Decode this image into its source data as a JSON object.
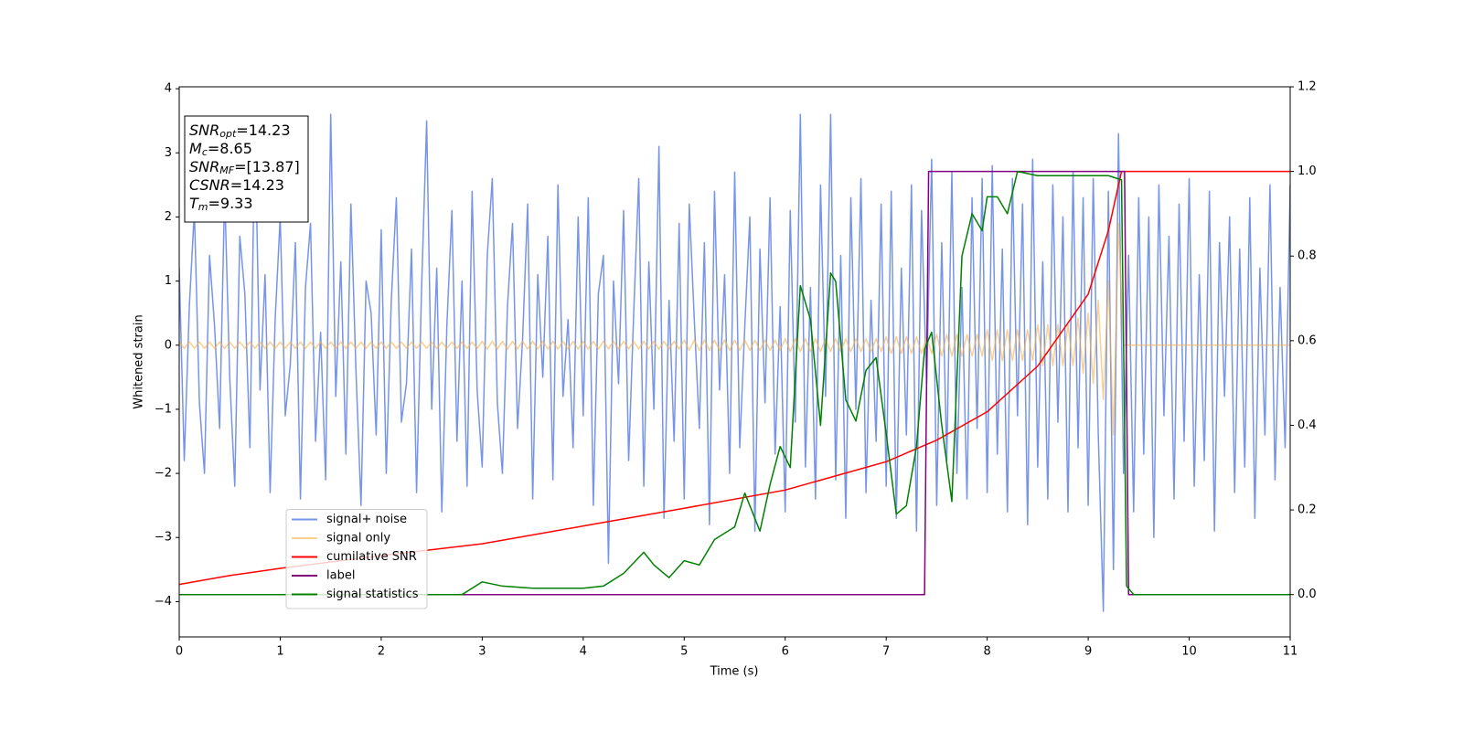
{
  "chart_data": {
    "type": "line",
    "xlabel": "Time (s)",
    "ylabel": "Whitened strain",
    "xlim": [
      0,
      11
    ],
    "ylim": [
      -4.55,
      4.03
    ],
    "y2lim": [
      -0.1,
      1.2
    ],
    "xticks": [
      0,
      1,
      2,
      3,
      4,
      5,
      6,
      7,
      8,
      9,
      10,
      11
    ],
    "yticks": [
      {
        "value": -4,
        "label": "−4"
      },
      {
        "value": -3,
        "label": "−3"
      },
      {
        "value": -2,
        "label": "−2"
      },
      {
        "value": -1,
        "label": "−1"
      },
      0,
      1,
      2,
      3,
      4
    ],
    "y2ticks": [
      {
        "value": 0,
        "label": "0.0"
      },
      0.2,
      0.4,
      0.6,
      0.8,
      {
        "value": 1,
        "label": "1.0"
      },
      1.2
    ],
    "legend": "lower left",
    "annotations": [
      {
        "base": "SNR",
        "sub": "opt",
        "text": "=14.23"
      },
      {
        "base": "M",
        "sub": "c",
        "text": "=8.65"
      },
      {
        "base": "SNR",
        "sub": "MF",
        "text": "=[13.87]"
      },
      {
        "base": "CSNR",
        "text": "=14.23"
      },
      {
        "base": "T",
        "sub": "m",
        "text": "=9.33"
      }
    ],
    "x": [
      0,
      0.05,
      0.1,
      0.15,
      0.2,
      0.25,
      0.3,
      0.35,
      0.4,
      0.45,
      0.5,
      0.55,
      0.6,
      0.65,
      0.7,
      0.75,
      0.8,
      0.85,
      0.9,
      0.95,
      1,
      1.05,
      1.1,
      1.15,
      1.2,
      1.25,
      1.3,
      1.35,
      1.4,
      1.45,
      1.5,
      1.55,
      1.6,
      1.65,
      1.7,
      1.75,
      1.8,
      1.85,
      1.9,
      1.95,
      2,
      2.05,
      2.1,
      2.15,
      2.2,
      2.25,
      2.3,
      2.35,
      2.4,
      2.45,
      2.5,
      2.55,
      2.6,
      2.65,
      2.7,
      2.75,
      2.8,
      2.85,
      2.9,
      2.95,
      3,
      3.05,
      3.1,
      3.15,
      3.2,
      3.25,
      3.3,
      3.35,
      3.4,
      3.45,
      3.5,
      3.55,
      3.6,
      3.65,
      3.7,
      3.75,
      3.8,
      3.85,
      3.9,
      3.95,
      4,
      4.05,
      4.1,
      4.15,
      4.2,
      4.25,
      4.3,
      4.35,
      4.4,
      4.45,
      4.5,
      4.55,
      4.6,
      4.65,
      4.7,
      4.75,
      4.8,
      4.85,
      4.9,
      4.95,
      5,
      5.05,
      5.1,
      5.15,
      5.2,
      5.25,
      5.3,
      5.35,
      5.4,
      5.45,
      5.5,
      5.55,
      5.6,
      5.65,
      5.7,
      5.75,
      5.8,
      5.85,
      5.9,
      5.95,
      6,
      6.05,
      6.1,
      6.15,
      6.2,
      6.25,
      6.3,
      6.35,
      6.4,
      6.45,
      6.5,
      6.55,
      6.6,
      6.65,
      6.7,
      6.75,
      6.8,
      6.85,
      6.9,
      6.95,
      7,
      7.05,
      7.1,
      7.15,
      7.2,
      7.25,
      7.3,
      7.35,
      7.4,
      7.45,
      7.5,
      7.55,
      7.6,
      7.65,
      7.7,
      7.75,
      7.8,
      7.85,
      7.9,
      7.95,
      8,
      8.05,
      8.1,
      8.15,
      8.2,
      8.25,
      8.3,
      8.35,
      8.4,
      8.45,
      8.5,
      8.55,
      8.6,
      8.65,
      8.7,
      8.75,
      8.8,
      8.85,
      8.9,
      8.95,
      9,
      9.05,
      9.1,
      9.15,
      9.2,
      9.25,
      9.3,
      9.35,
      9.4,
      9.45,
      9.5,
      9.55,
      9.6,
      9.65,
      9.7,
      9.75,
      9.8,
      9.85,
      9.9,
      9.95,
      10,
      10.05,
      10.1,
      10.15,
      10.2,
      10.25,
      10.3,
      10.35,
      10.4,
      10.45,
      10.5,
      10.55,
      10.6,
      10.65,
      10.7,
      10.75,
      10.8,
      10.85,
      10.9,
      10.95,
      11
    ],
    "series": [
      {
        "name": "signal+ noise",
        "color": "#7795e8",
        "axis": "y",
        "values": [
          1.2,
          -1.8,
          0.6,
          2.1,
          -0.9,
          -2.0,
          1.4,
          0.3,
          -1.3,
          2.4,
          -0.5,
          -2.2,
          1.7,
          0.8,
          -1.6,
          3.5,
          -0.7,
          1.1,
          -2.3,
          0.4,
          2.0,
          -1.1,
          -0.3,
          1.6,
          -2.4,
          0.9,
          1.9,
          -1.5,
          0.2,
          -2.1,
          3.6,
          -0.8,
          1.3,
          -1.7,
          2.2,
          -0.4,
          -2.5,
          1.0,
          0.5,
          -1.4,
          1.8,
          -2.0,
          0.7,
          2.3,
          -1.2,
          -0.6,
          1.5,
          -2.3,
          0.9,
          3.5,
          -1.0,
          1.2,
          -2.6,
          0.3,
          2.1,
          -1.5,
          1.0,
          -2.2,
          2.4,
          -0.7,
          -1.9,
          1.4,
          2.6,
          -0.9,
          -2.0,
          0.6,
          1.9,
          -1.3,
          0.1,
          2.2,
          -2.4,
          1.1,
          -0.5,
          1.7,
          -2.1,
          2.5,
          -0.8,
          0.4,
          -1.6,
          2.0,
          -1.1,
          2.3,
          -2.5,
          0.8,
          1.4,
          -3.4,
          1.0,
          -0.6,
          2.1,
          -1.8,
          0.5,
          2.6,
          -2.2,
          1.3,
          -1.0,
          3.1,
          -2.7,
          0.7,
          -1.5,
          1.9,
          -2.4,
          2.2,
          0.4,
          -1.3,
          1.6,
          -2.8,
          2.4,
          -0.7,
          1.1,
          -2.0,
          2.7,
          -1.6,
          0.3,
          2.0,
          -2.9,
          1.5,
          -0.9,
          2.3,
          -1.7,
          0.6,
          -2.6,
          2.1,
          -1.2,
          3.6,
          -1.9,
          0.9,
          -2.4,
          2.5,
          -0.8,
          3.6,
          -2.1,
          1.4,
          -2.7,
          2.3,
          -1.0,
          2.6,
          -2.3,
          0.7,
          -1.5,
          2.2,
          -2.2,
          2.4,
          -2.7,
          1.2,
          -1.4,
          2.5,
          -2.9,
          2.1,
          -0.6,
          2.9,
          -2.5,
          1.6,
          -1.8,
          2.7,
          -2.0,
          0.9,
          -2.4,
          2.3,
          -1.3,
          2.6,
          -2.3,
          2.8,
          -1.7,
          1.5,
          -2.6,
          2.6,
          -1.1,
          2.2,
          -2.8,
          2.9,
          -1.9,
          1.3,
          -2.4,
          2.5,
          -1.2,
          2.0,
          -2.6,
          2.7,
          -1.6,
          2.3,
          -2.5,
          2.6,
          -1.4,
          -4.15,
          2.4,
          -3.5,
          3.3,
          -2.0,
          1.4,
          -2.6,
          2.3,
          -1.7,
          2.0,
          -3.0,
          2.5,
          -1.1,
          1.7,
          -2.4,
          2.2,
          -1.5,
          2.6,
          -2.2,
          1.1,
          -1.8,
          2.4,
          -2.9,
          1.6,
          -0.8,
          2.0,
          -2.3,
          1.5,
          -1.9,
          2.3,
          -2.7,
          1.2,
          -1.4,
          2.5,
          -2.1,
          0.9,
          -1.6,
          2.5
        ]
      },
      {
        "name": "signal only",
        "color": "#f5b04a",
        "axis": "y",
        "values": [
          0.05,
          -0.05,
          0.05,
          -0.05,
          0.05,
          -0.05,
          0.05,
          -0.05,
          0.05,
          -0.05,
          0.05,
          -0.05,
          0.05,
          -0.05,
          0.05,
          -0.05,
          0.05,
          -0.05,
          0.05,
          -0.05,
          0.05,
          -0.05,
          0.05,
          -0.05,
          0.05,
          -0.05,
          0.05,
          -0.05,
          0.05,
          -0.05,
          0.05,
          -0.05,
          0.05,
          -0.05,
          0.05,
          -0.05,
          0.05,
          -0.05,
          0.05,
          -0.05,
          0.05,
          -0.05,
          0.05,
          -0.05,
          0.05,
          -0.05,
          0.05,
          -0.05,
          0.05,
          -0.05,
          0.05,
          -0.05,
          0.05,
          -0.05,
          0.05,
          -0.05,
          0.05,
          -0.05,
          0.05,
          -0.05,
          0.06,
          -0.06,
          0.06,
          -0.06,
          0.06,
          -0.06,
          0.06,
          -0.06,
          0.06,
          -0.06,
          0.06,
          -0.06,
          0.06,
          -0.06,
          0.06,
          -0.06,
          0.06,
          -0.06,
          0.06,
          -0.06,
          0.06,
          -0.06,
          0.06,
          -0.06,
          0.06,
          -0.06,
          0.06,
          -0.06,
          0.06,
          -0.06,
          0.06,
          -0.06,
          0.06,
          -0.06,
          0.06,
          -0.06,
          0.06,
          -0.06,
          0.06,
          -0.06,
          0.08,
          -0.08,
          0.08,
          -0.08,
          0.08,
          -0.08,
          0.08,
          -0.08,
          0.08,
          -0.08,
          0.08,
          -0.08,
          0.08,
          -0.08,
          0.08,
          -0.08,
          0.08,
          -0.08,
          0.08,
          -0.08,
          0.1,
          -0.1,
          0.1,
          -0.1,
          0.1,
          -0.1,
          0.1,
          -0.1,
          0.1,
          -0.1,
          0.1,
          -0.1,
          0.1,
          -0.1,
          0.1,
          -0.1,
          0.1,
          -0.1,
          0.1,
          -0.1,
          0.13,
          -0.13,
          0.13,
          -0.13,
          0.13,
          -0.13,
          0.13,
          -0.13,
          0.13,
          -0.13,
          0.17,
          -0.17,
          0.17,
          -0.17,
          0.17,
          -0.17,
          0.17,
          -0.17,
          0.17,
          -0.17,
          0.24,
          -0.24,
          0.24,
          -0.24,
          0.24,
          -0.24,
          0.24,
          -0.24,
          0.24,
          -0.24,
          0.32,
          -0.32,
          0.32,
          -0.32,
          0.32,
          -0.32,
          0.32,
          -0.32,
          0.42,
          -0.44,
          0.5,
          -0.6,
          0.7,
          -0.85,
          1.0,
          -1.4,
          1.9,
          0,
          0,
          0,
          0,
          0,
          0,
          0,
          0,
          0,
          0,
          0,
          0,
          0,
          0,
          0,
          0,
          0,
          0,
          0,
          0,
          0,
          0,
          0,
          0,
          0,
          0,
          0,
          0,
          0,
          0,
          0,
          0,
          0,
          0
        ]
      },
      {
        "name": "cumilative SNR",
        "color": "#ff0000",
        "axis": "y2",
        "x": [
          0,
          0.5,
          1,
          2,
          3,
          4,
          5,
          6,
          7,
          7.5,
          8,
          8.5,
          9,
          9.2,
          9.33,
          11
        ],
        "values": [
          0.024,
          0.045,
          0.062,
          0.092,
          0.12,
          0.162,
          0.204,
          0.247,
          0.314,
          0.365,
          0.432,
          0.54,
          0.71,
          0.86,
          1.0,
          1.0
        ]
      },
      {
        "name": "label",
        "color": "#800080",
        "axis": "y2",
        "x": [
          0,
          7.38,
          7.42,
          9.36,
          9.4,
          11
        ],
        "values": [
          0,
          0,
          1,
          1,
          0,
          0
        ]
      },
      {
        "name": "signal statistics",
        "color": "#008000",
        "axis": "y2",
        "x": [
          0,
          2.8,
          3.0,
          3.2,
          3.5,
          4.0,
          4.2,
          4.4,
          4.6,
          4.7,
          4.85,
          5.0,
          5.15,
          5.3,
          5.5,
          5.6,
          5.75,
          5.85,
          5.95,
          6.05,
          6.15,
          6.25,
          6.35,
          6.45,
          6.5,
          6.6,
          6.7,
          6.8,
          6.9,
          7.0,
          7.1,
          7.2,
          7.3,
          7.38,
          7.45,
          7.55,
          7.65,
          7.75,
          7.85,
          7.95,
          8.0,
          8.1,
          8.2,
          8.3,
          8.5,
          9.2,
          9.33,
          9.38,
          9.45,
          11
        ],
        "values": [
          0,
          0,
          0.03,
          0.02,
          0.015,
          0.015,
          0.02,
          0.05,
          0.1,
          0.07,
          0.04,
          0.08,
          0.07,
          0.13,
          0.16,
          0.24,
          0.15,
          0.26,
          0.35,
          0.3,
          0.73,
          0.65,
          0.4,
          0.76,
          0.74,
          0.46,
          0.41,
          0.53,
          0.56,
          0.38,
          0.19,
          0.21,
          0.35,
          0.58,
          0.62,
          0.4,
          0.22,
          0.8,
          0.9,
          0.86,
          0.94,
          0.94,
          0.9,
          1.0,
          0.99,
          0.99,
          0.98,
          0.02,
          0,
          0
        ]
      }
    ]
  }
}
